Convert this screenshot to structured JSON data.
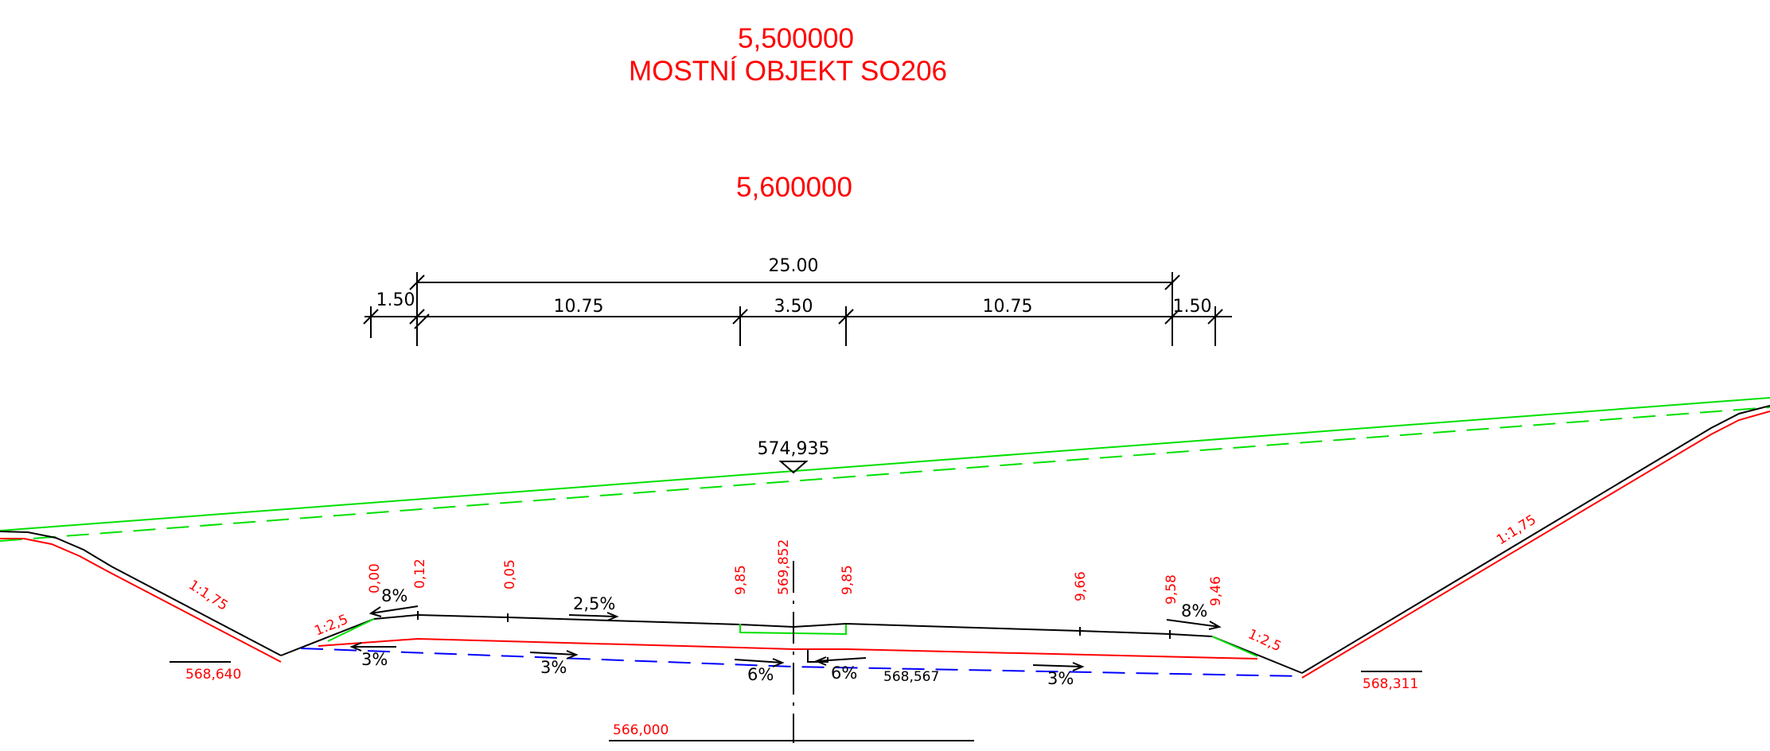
{
  "header": {
    "station_start": "5,500000",
    "object_label": "MOSTNÍ  OBJEKT  SO206",
    "station_current": "5,600000"
  },
  "dimensions": {
    "total": "25.00",
    "left_verge": "1.50",
    "left_carriageway": "10.75",
    "median": "3.50",
    "right_carriageway": "10.75",
    "right_verge": "1.50"
  },
  "levels": {
    "bridge_level": "574,935",
    "axis_level": "569,852",
    "left_ditch": "568,640",
    "right_ditch": "568,311",
    "subgrade_axis": "568,567",
    "datum": "566,000"
  },
  "offsets": [
    "0,00",
    "0,12",
    "0,05",
    "9,85",
    "9,85",
    "9,66",
    "9,58",
    "9,46"
  ],
  "slopes": {
    "left_cut": "1:1,75",
    "right_cut": "1:1,75",
    "left_verge": "1:2,5",
    "right_verge": "1:2,5"
  },
  "crossfalls": {
    "left_verge": "8%",
    "right_verge": "8%",
    "carriageway": "2,5%",
    "sub_left_outer": "3%",
    "sub_left": "3%",
    "sub_center_left": "6%",
    "sub_center_right": "6%",
    "sub_right": "3%"
  },
  "colors": {
    "annotation": "#ff0000",
    "terrain": "#00e000",
    "subgrade": "#0000ff",
    "structure": "#000000"
  }
}
